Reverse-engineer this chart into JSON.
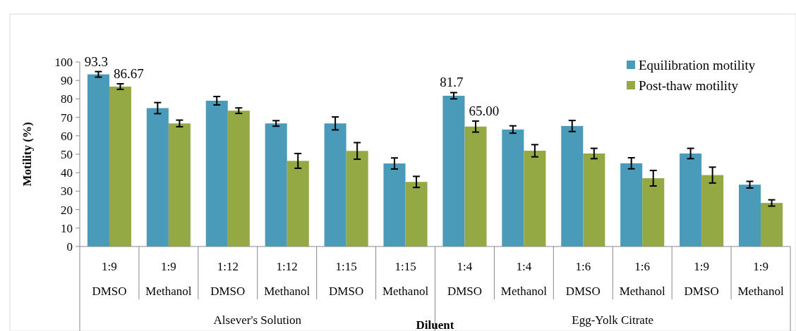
{
  "chart_data": {
    "type": "bar",
    "xlabel": "Diluent",
    "ylabel": "Motility (%)",
    "categories": [
      "1:9 DMSO",
      "1:9 Methanol",
      "1:12 DMSO",
      "1:12 Methanol",
      "1:15 DMSO",
      "1:15 Methanol",
      "1:4 DMSO",
      "1:4 Methanol",
      "1:6 DMSO",
      "1:6 Methanol",
      "1:9 DMSO",
      "1:9 Methanol"
    ],
    "series": [
      {
        "name": "Equilibration motility",
        "color": "#4a9aba",
        "values": [
          93.3,
          75,
          79,
          66.7,
          66.7,
          45,
          81.7,
          63.4,
          65.3,
          45.1,
          50.4,
          33.5
        ],
        "errors": [
          1.5,
          3,
          2.3,
          1.5,
          3.5,
          3,
          1.7,
          2,
          3,
          3,
          2.8,
          1.8
        ],
        "value_labels": [
          "93.3",
          null,
          null,
          null,
          null,
          null,
          "81.7",
          null,
          null,
          null,
          null,
          null
        ]
      },
      {
        "name": "Post-thaw motility",
        "color": "#94a844",
        "values": [
          86.67,
          66.7,
          73.6,
          46.4,
          51.8,
          35,
          65,
          51.9,
          50.4,
          37,
          38.7,
          23.6
        ],
        "errors": [
          1.5,
          1.8,
          1.5,
          4,
          4.5,
          3,
          3,
          3.3,
          2.8,
          4.2,
          4.3,
          1.7
        ],
        "value_labels": [
          "86.67",
          null,
          null,
          null,
          null,
          null,
          "65.00",
          null,
          null,
          null,
          null,
          null
        ]
      }
    ],
    "annotations": [
      "Alsever's Solution",
      "Egg-Yolk Citrate"
    ],
    "ylim": [
      0,
      100
    ],
    "yticks": [
      0,
      10,
      20,
      30,
      40,
      50,
      60,
      70,
      80,
      90,
      100
    ],
    "legend": "top right",
    "grid": false
  }
}
